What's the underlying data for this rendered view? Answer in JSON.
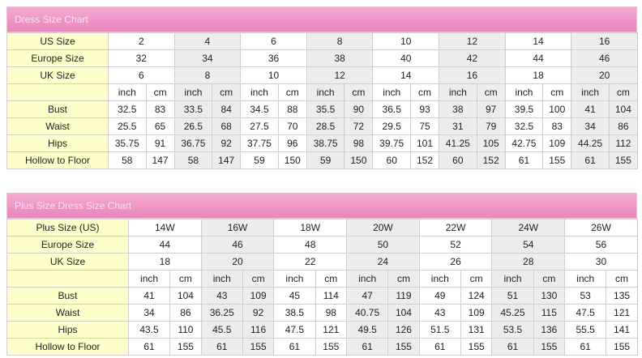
{
  "dress_chart": {
    "title": "Dress Size Chart",
    "rows": [
      {
        "label": "US Size",
        "values": [
          "2",
          "4",
          "6",
          "8",
          "10",
          "12",
          "14",
          "16"
        ]
      },
      {
        "label": "Europe Size",
        "values": [
          "32",
          "34",
          "36",
          "38",
          "40",
          "42",
          "44",
          "46"
        ]
      },
      {
        "label": "UK Size",
        "values": [
          "6",
          "8",
          "10",
          "12",
          "14",
          "16",
          "18",
          "20"
        ]
      }
    ],
    "unit_labels": [
      "inch",
      "cm"
    ],
    "measures": [
      {
        "label": "Bust",
        "values": [
          "32.5",
          "83",
          "33.5",
          "84",
          "34.5",
          "88",
          "35.5",
          "90",
          "36.5",
          "93",
          "38",
          "97",
          "39.5",
          "100",
          "41",
          "104"
        ]
      },
      {
        "label": "Waist",
        "values": [
          "25.5",
          "65",
          "26.5",
          "68",
          "27.5",
          "70",
          "28.5",
          "72",
          "29.5",
          "75",
          "31",
          "79",
          "32.5",
          "83",
          "34",
          "86"
        ]
      },
      {
        "label": "Hips",
        "values": [
          "35.75",
          "91",
          "36.75",
          "92",
          "37.75",
          "96",
          "38.75",
          "98",
          "39.75",
          "101",
          "41.25",
          "105",
          "42.75",
          "109",
          "44.25",
          "112"
        ]
      },
      {
        "label": "Hollow to Floor",
        "values": [
          "58",
          "147",
          "58",
          "147",
          "59",
          "150",
          "59",
          "150",
          "60",
          "152",
          "60",
          "152",
          "61",
          "155",
          "61",
          "155"
        ]
      }
    ]
  },
  "plus_chart": {
    "title": "Plus Size Dress Size Chart",
    "rows": [
      {
        "label": "Plus Size (US)",
        "values": [
          "14W",
          "16W",
          "18W",
          "20W",
          "22W",
          "24W",
          "26W"
        ]
      },
      {
        "label": "Europe Size",
        "values": [
          "44",
          "46",
          "48",
          "50",
          "52",
          "54",
          "56"
        ]
      },
      {
        "label": "UK Size",
        "values": [
          "18",
          "20",
          "22",
          "24",
          "26",
          "28",
          "30"
        ]
      }
    ],
    "unit_labels": [
      "inch",
      "cm"
    ],
    "measures": [
      {
        "label": "Bust",
        "values": [
          "41",
          "104",
          "43",
          "109",
          "45",
          "114",
          "47",
          "119",
          "49",
          "124",
          "51",
          "130",
          "53",
          "135"
        ]
      },
      {
        "label": "Waist",
        "values": [
          "34",
          "86",
          "36.25",
          "92",
          "38.5",
          "98",
          "40.75",
          "104",
          "43",
          "109",
          "45.25",
          "115",
          "47.5",
          "121"
        ]
      },
      {
        "label": "Hips",
        "values": [
          "43.5",
          "110",
          "45.5",
          "116",
          "47.5",
          "121",
          "49.5",
          "126",
          "51.5",
          "131",
          "53.5",
          "136",
          "55.5",
          "141"
        ]
      },
      {
        "label": "Hollow to Floor",
        "values": [
          "61",
          "155",
          "61",
          "155",
          "61",
          "155",
          "61",
          "155",
          "61",
          "155",
          "61",
          "155",
          "61",
          "155"
        ]
      }
    ]
  },
  "colors": {
    "header": "#ec8fc3",
    "label_bg": "#ffffcc",
    "alt_col_bg": "#ececec"
  }
}
